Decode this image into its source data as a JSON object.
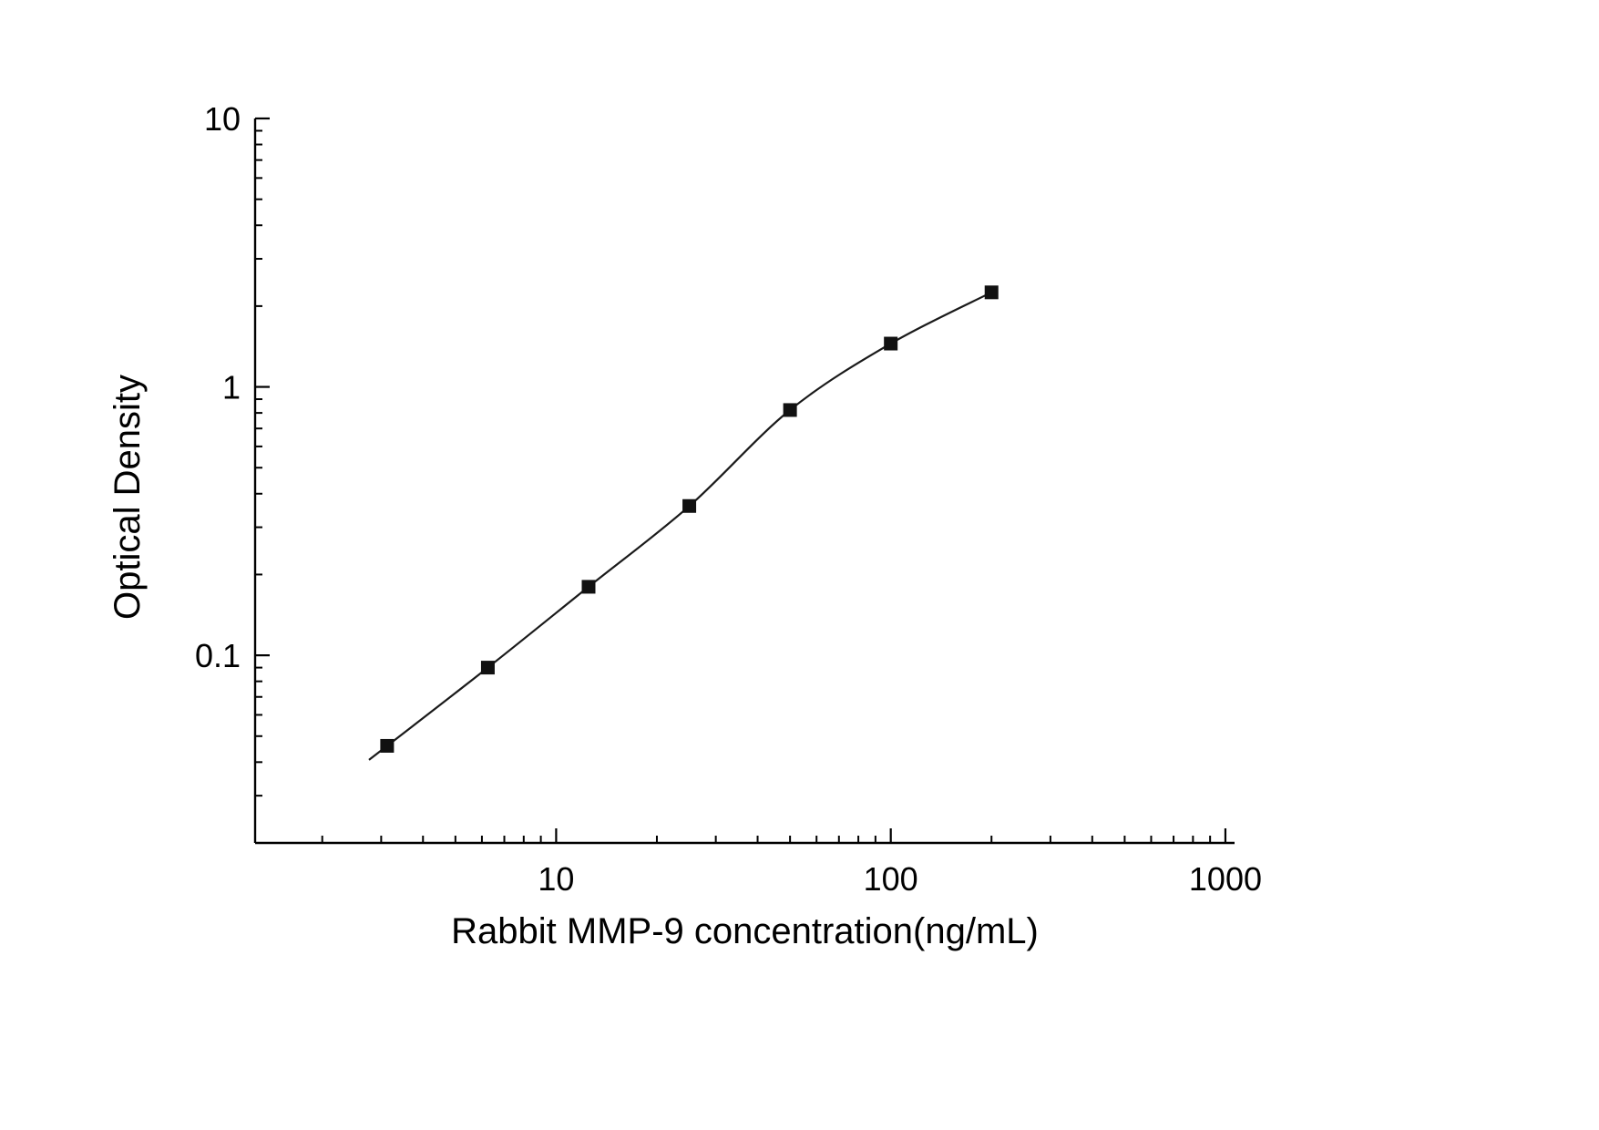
{
  "chart_data": {
    "type": "line",
    "x": [
      3.125,
      6.25,
      12.5,
      25,
      50,
      100,
      200
    ],
    "y": [
      0.046,
      0.09,
      0.18,
      0.36,
      0.82,
      1.45,
      2.25
    ],
    "title": "",
    "xlabel": "Rabbit MMP-9 concentration(ng/mL)",
    "ylabel": "Optical Density",
    "xscale": "log",
    "yscale": "log",
    "xlim": [
      1.26,
      1065
    ],
    "ylim": [
      0.02,
      10
    ],
    "x_ticks": [
      10,
      100,
      1000
    ],
    "y_ticks": [
      0.1,
      1,
      10
    ],
    "grid": false,
    "legend_position": "none",
    "marker": "filled-square",
    "marker_color": "#111111",
    "line_color": "#1a1a1a",
    "axis_color": "#000000",
    "background_color": "#ffffff"
  }
}
